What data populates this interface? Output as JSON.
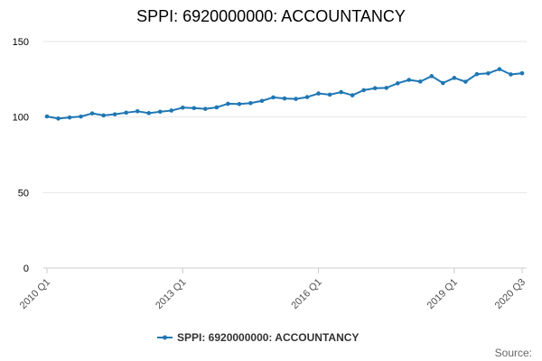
{
  "chart_data": {
    "type": "line",
    "title": "SPPI: 6920000000: ACCOUNTANCY",
    "xlabel": "",
    "ylabel": "",
    "ylim": [
      0,
      150
    ],
    "yticks": [
      0,
      50,
      100,
      150
    ],
    "xticks": [
      "2010 Q1",
      "2013 Q1",
      "2016 Q1",
      "2019 Q1",
      "2020 Q3"
    ],
    "grid": true,
    "legend_position": "bottom",
    "x": [
      "2010 Q1",
      "2010 Q2",
      "2010 Q3",
      "2010 Q4",
      "2011 Q1",
      "2011 Q2",
      "2011 Q3",
      "2011 Q4",
      "2012 Q1",
      "2012 Q2",
      "2012 Q3",
      "2012 Q4",
      "2013 Q1",
      "2013 Q2",
      "2013 Q3",
      "2013 Q4",
      "2014 Q1",
      "2014 Q2",
      "2014 Q3",
      "2014 Q4",
      "2015 Q1",
      "2015 Q2",
      "2015 Q3",
      "2015 Q4",
      "2016 Q1",
      "2016 Q2",
      "2016 Q3",
      "2016 Q4",
      "2017 Q1",
      "2017 Q2",
      "2017 Q3",
      "2017 Q4",
      "2018 Q1",
      "2018 Q2",
      "2018 Q3",
      "2018 Q4",
      "2019 Q1",
      "2019 Q2",
      "2019 Q3",
      "2019 Q4",
      "2020 Q1",
      "2020 Q2",
      "2020 Q3"
    ],
    "series": [
      {
        "name": "SPPI: 6920000000: ACCOUNTANCY",
        "color": "#1f77b4",
        "values": [
          100.4,
          99.0,
          99.7,
          100.3,
          102.4,
          101.1,
          101.8,
          102.9,
          103.8,
          102.6,
          103.5,
          104.3,
          106.2,
          105.9,
          105.4,
          106.4,
          108.8,
          108.6,
          109.2,
          110.7,
          113.0,
          112.3,
          112.0,
          113.2,
          115.6,
          114.8,
          116.5,
          114.4,
          117.8,
          119.1,
          119.3,
          122.3,
          124.6,
          123.5,
          127.1,
          122.5,
          125.9,
          123.4,
          128.4,
          128.9,
          131.7,
          128.2,
          129.0
        ]
      }
    ]
  },
  "source_label": "Source:"
}
